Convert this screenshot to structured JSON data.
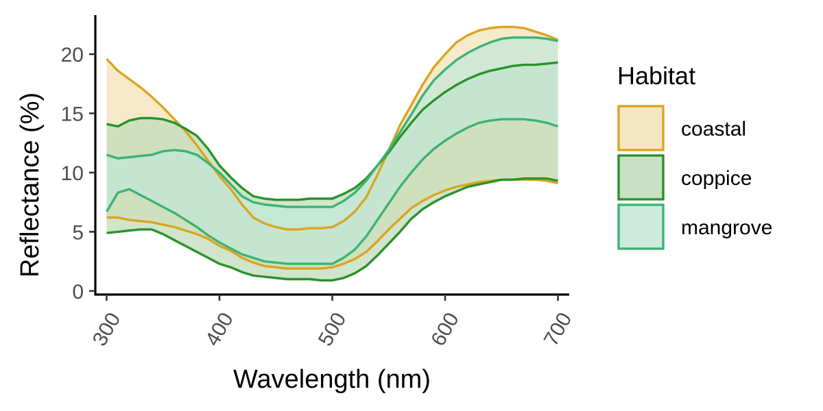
{
  "chart_data": {
    "type": "area",
    "xlabel": "Wavelength (nm)",
    "ylabel": "Reflectance (%)",
    "xlim": [
      290,
      710
    ],
    "ylim": [
      -0.3,
      23.3
    ],
    "x_ticks": [
      300,
      400,
      500,
      600,
      700
    ],
    "y_ticks": [
      0,
      5,
      10,
      15,
      20
    ],
    "grid": false,
    "legend": {
      "title": "Habitat",
      "placement": "right"
    },
    "x": [
      300,
      310,
      320,
      330,
      340,
      350,
      360,
      370,
      380,
      390,
      400,
      410,
      420,
      430,
      440,
      450,
      460,
      470,
      480,
      490,
      500,
      510,
      520,
      530,
      540,
      550,
      560,
      570,
      580,
      590,
      600,
      610,
      620,
      630,
      640,
      650,
      660,
      670,
      680,
      690,
      700
    ],
    "series": [
      {
        "name": "coastal",
        "fill": "#f3e3b9",
        "stroke": "#daa520",
        "upper": [
          19.6,
          18.6,
          17.9,
          17.2,
          16.4,
          15.5,
          14.5,
          13.5,
          12.3,
          11.0,
          9.7,
          8.6,
          7.3,
          6.2,
          5.7,
          5.4,
          5.2,
          5.2,
          5.3,
          5.3,
          5.4,
          5.9,
          6.7,
          7.9,
          9.8,
          11.9,
          14.0,
          15.7,
          17.4,
          18.9,
          20.0,
          21.0,
          21.6,
          22.0,
          22.2,
          22.3,
          22.3,
          22.2,
          21.9,
          21.6,
          21.2
        ],
        "lower": [
          6.2,
          6.2,
          6.0,
          5.9,
          5.8,
          5.6,
          5.4,
          5.1,
          4.8,
          4.4,
          3.8,
          3.4,
          2.8,
          2.4,
          2.1,
          2.0,
          1.9,
          1.9,
          1.9,
          1.9,
          2.0,
          2.3,
          2.7,
          3.3,
          4.2,
          5.2,
          6.1,
          7.0,
          7.6,
          8.1,
          8.5,
          8.8,
          9.0,
          9.2,
          9.3,
          9.4,
          9.4,
          9.4,
          9.4,
          9.3,
          9.1
        ]
      },
      {
        "name": "coppice",
        "fill": "#c0dcba",
        "stroke": "#2a922a",
        "upper": [
          14.1,
          13.9,
          14.4,
          14.6,
          14.6,
          14.5,
          14.2,
          13.7,
          13.1,
          12.0,
          10.6,
          9.6,
          8.7,
          8.0,
          7.8,
          7.7,
          7.7,
          7.7,
          7.8,
          7.8,
          7.8,
          8.2,
          8.7,
          9.5,
          10.6,
          11.7,
          13.0,
          14.2,
          15.3,
          16.1,
          16.8,
          17.4,
          17.9,
          18.3,
          18.6,
          18.8,
          19.0,
          19.1,
          19.1,
          19.2,
          19.3
        ],
        "lower": [
          4.9,
          5.0,
          5.1,
          5.2,
          5.2,
          4.8,
          4.3,
          3.8,
          3.3,
          2.8,
          2.3,
          2.0,
          1.6,
          1.3,
          1.2,
          1.1,
          1.0,
          1.0,
          1.0,
          0.9,
          0.9,
          1.1,
          1.5,
          2.1,
          3.0,
          4.0,
          5.0,
          6.1,
          6.9,
          7.5,
          8.0,
          8.4,
          8.8,
          9.0,
          9.2,
          9.4,
          9.4,
          9.5,
          9.5,
          9.5,
          9.3
        ]
      },
      {
        "name": "mangrove",
        "fill": "#c3e7d7",
        "stroke": "#3cb371",
        "upper": [
          11.5,
          11.2,
          11.3,
          11.4,
          11.5,
          11.8,
          11.9,
          11.8,
          11.5,
          10.8,
          10.0,
          9.0,
          8.0,
          7.5,
          7.3,
          7.2,
          7.1,
          7.1,
          7.1,
          7.1,
          7.1,
          7.6,
          8.3,
          9.3,
          10.6,
          11.9,
          13.4,
          14.9,
          16.5,
          17.8,
          18.7,
          19.5,
          20.1,
          20.6,
          21.0,
          21.3,
          21.4,
          21.4,
          21.4,
          21.3,
          21.1
        ],
        "lower": [
          6.7,
          8.3,
          8.6,
          8.1,
          7.6,
          7.1,
          6.6,
          6.0,
          5.4,
          4.7,
          4.1,
          3.6,
          3.1,
          2.8,
          2.5,
          2.4,
          2.3,
          2.3,
          2.3,
          2.3,
          2.3,
          2.8,
          3.5,
          4.6,
          6.0,
          7.4,
          8.8,
          10.0,
          11.1,
          12.0,
          12.7,
          13.3,
          13.8,
          14.2,
          14.4,
          14.5,
          14.5,
          14.5,
          14.4,
          14.2,
          13.9
        ]
      }
    ]
  }
}
